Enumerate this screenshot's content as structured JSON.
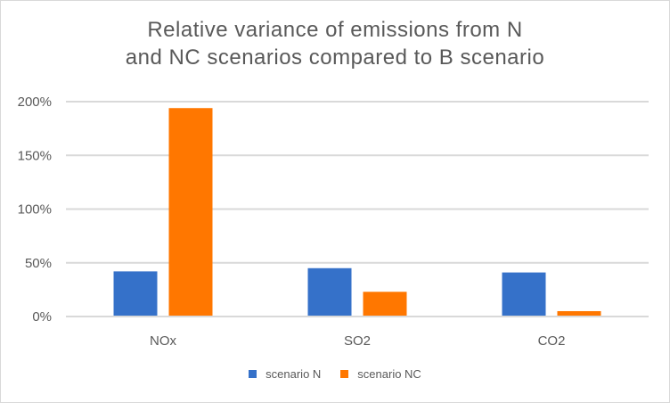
{
  "chart_data": {
    "type": "bar",
    "title_lines": [
      "Relative variance of emissions from N",
      "and NC scenarios compared to B scenario"
    ],
    "categories": [
      "NOx",
      "SO2",
      "CO2"
    ],
    "series": [
      {
        "name": "scenario N",
        "color": "#3571c9",
        "values": [
          42,
          45,
          41
        ]
      },
      {
        "name": "scenario NC",
        "color": "#ff7700",
        "values": [
          194,
          23,
          5
        ]
      }
    ],
    "y_ticks": [
      0,
      50,
      100,
      150,
      200
    ],
    "y_tick_labels": [
      "0%",
      "50%",
      "100%",
      "150%",
      "200%"
    ],
    "ylim": [
      0,
      200
    ],
    "y_unit": "%",
    "grid": true,
    "legend_position": "bottom"
  }
}
